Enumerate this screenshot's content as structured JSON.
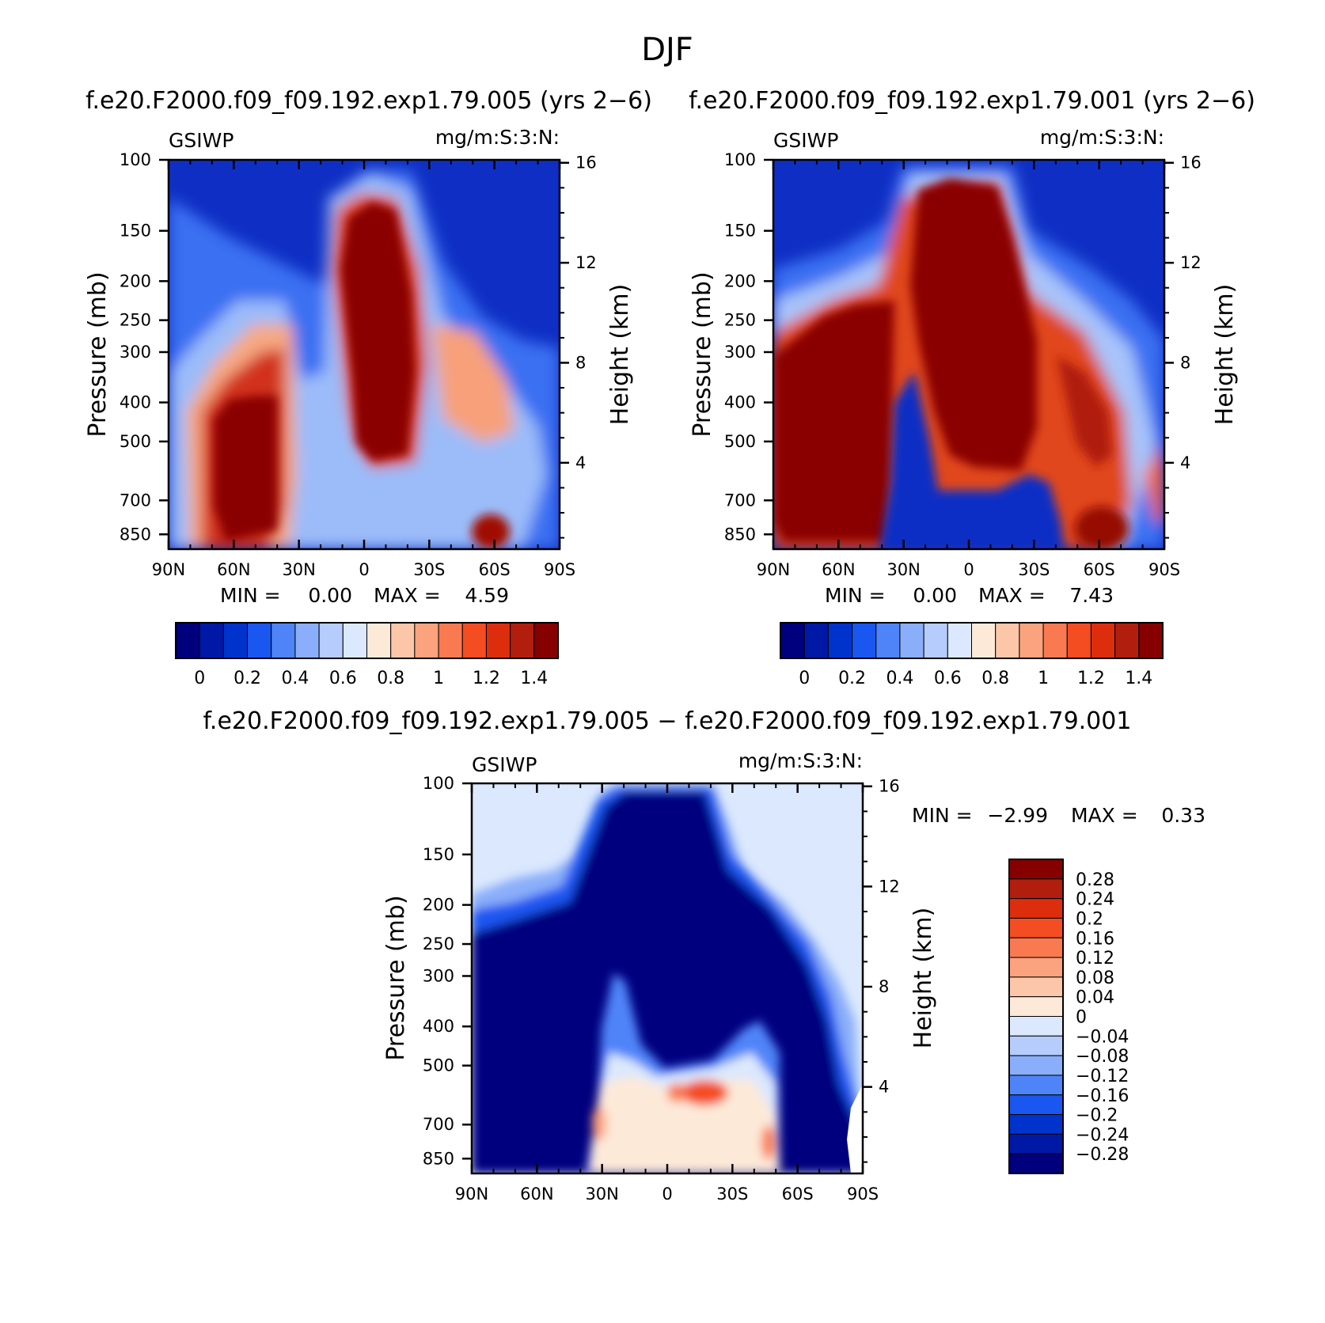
{
  "title": "DJF",
  "colors": {
    "abs_fill": [
      "#00007f",
      "#0018a6",
      "#0033cc",
      "#1a57f0",
      "#4f84f8",
      "#8aaef9",
      "#b5ccfc",
      "#dbe8fd",
      "#fde9d8",
      "#fcc7a8",
      "#fba37e",
      "#f97a51",
      "#f44d22",
      "#dc2e0d",
      "#b21e0e",
      "#870000"
    ],
    "diff_fill": [
      "#00007f",
      "#0018a6",
      "#0033cc",
      "#1a57f0",
      "#4f84f8",
      "#8aaef9",
      "#b5ccfc",
      "#dbe8fd",
      "#fde9d8",
      "#fcc7a8",
      "#fba37e",
      "#f97a51",
      "#f44d22",
      "#dc2e0d",
      "#b21e0e",
      "#870000"
    ]
  },
  "chart_data": [
    {
      "id": "panel-left",
      "type": "heatmap",
      "title": "f.e20.F2000.f09_f09.192.exp1.79.005 (yrs 2−6)",
      "left_label": "GSIWP",
      "right_label": "mg/m:S:3:N:",
      "ylabel": "Pressure  (mb)",
      "y2label": "Height  (km)",
      "x_ticks": [
        "90N",
        "60N",
        "30N",
        "0",
        "30S",
        "60S",
        "90S"
      ],
      "y_ticks": [
        "100",
        "150",
        "200",
        "250",
        "300",
        "400",
        "500",
        "700",
        "850"
      ],
      "y_tick_values": [
        100,
        150,
        200,
        250,
        300,
        400,
        500,
        700,
        850
      ],
      "y2_ticks": [
        "16",
        "12",
        "8",
        "4"
      ],
      "y2_tick_values": [
        16,
        12,
        8,
        4
      ],
      "xlim": [
        90,
        -90
      ],
      "ylim": [
        100,
        925
      ],
      "min_label": "MIN  =",
      "min_value": "0.00",
      "max_label": "MAX  =",
      "max_value": "4.59",
      "colorbar_labels": [
        "0",
        "0.2",
        "0.4",
        "0.6",
        "0.8",
        "1",
        "1.2",
        "1.4"
      ]
    },
    {
      "id": "panel-right",
      "type": "heatmap",
      "title": "f.e20.F2000.f09_f09.192.exp1.79.001 (yrs 2−6)",
      "left_label": "GSIWP",
      "right_label": "mg/m:S:3:N:",
      "ylabel": "Pressure  (mb)",
      "y2label": "Height  (km)",
      "x_ticks": [
        "90N",
        "60N",
        "30N",
        "0",
        "30S",
        "60S",
        "90S"
      ],
      "y_ticks": [
        "100",
        "150",
        "200",
        "250",
        "300",
        "400",
        "500",
        "700",
        "850"
      ],
      "y_tick_values": [
        100,
        150,
        200,
        250,
        300,
        400,
        500,
        700,
        850
      ],
      "y2_ticks": [
        "16",
        "12",
        "8",
        "4"
      ],
      "y2_tick_values": [
        16,
        12,
        8,
        4
      ],
      "xlim": [
        90,
        -90
      ],
      "ylim": [
        100,
        925
      ],
      "min_label": "MIN  =",
      "min_value": "0.00",
      "max_label": "MAX  =",
      "max_value": "7.43",
      "colorbar_labels": [
        "0",
        "0.2",
        "0.4",
        "0.6",
        "0.8",
        "1",
        "1.2",
        "1.4"
      ]
    },
    {
      "id": "panel-diff",
      "type": "heatmap",
      "title": "f.e20.F2000.f09_f09.192.exp1.79.005 − f.e20.F2000.f09_f09.192.exp1.79.001",
      "left_label": "GSIWP",
      "right_label": "mg/m:S:3:N:",
      "ylabel": "Pressure  (mb)",
      "y2label": "Height  (km)",
      "x_ticks": [
        "90N",
        "60N",
        "30N",
        "0",
        "30S",
        "60S",
        "90S"
      ],
      "y_ticks": [
        "100",
        "150",
        "200",
        "250",
        "300",
        "400",
        "500",
        "700",
        "850"
      ],
      "y_tick_values": [
        100,
        150,
        200,
        250,
        300,
        400,
        500,
        700,
        850
      ],
      "y2_ticks": [
        "16",
        "12",
        "8",
        "4"
      ],
      "y2_tick_values": [
        16,
        12,
        8,
        4
      ],
      "xlim": [
        90,
        -90
      ],
      "ylim": [
        100,
        925
      ],
      "min_label": "MIN  =",
      "min_value": "−2.99",
      "max_label": "MAX  =",
      "max_value": "0.33",
      "colorbar_labels": [
        "0.28",
        "0.24",
        "0.2",
        "0.16",
        "0.12",
        "0.08",
        "0.04",
        "0",
        "−0.04",
        "−0.08",
        "−0.12",
        "−0.16",
        "−0.2",
        "−0.24",
        "−0.28"
      ]
    }
  ]
}
